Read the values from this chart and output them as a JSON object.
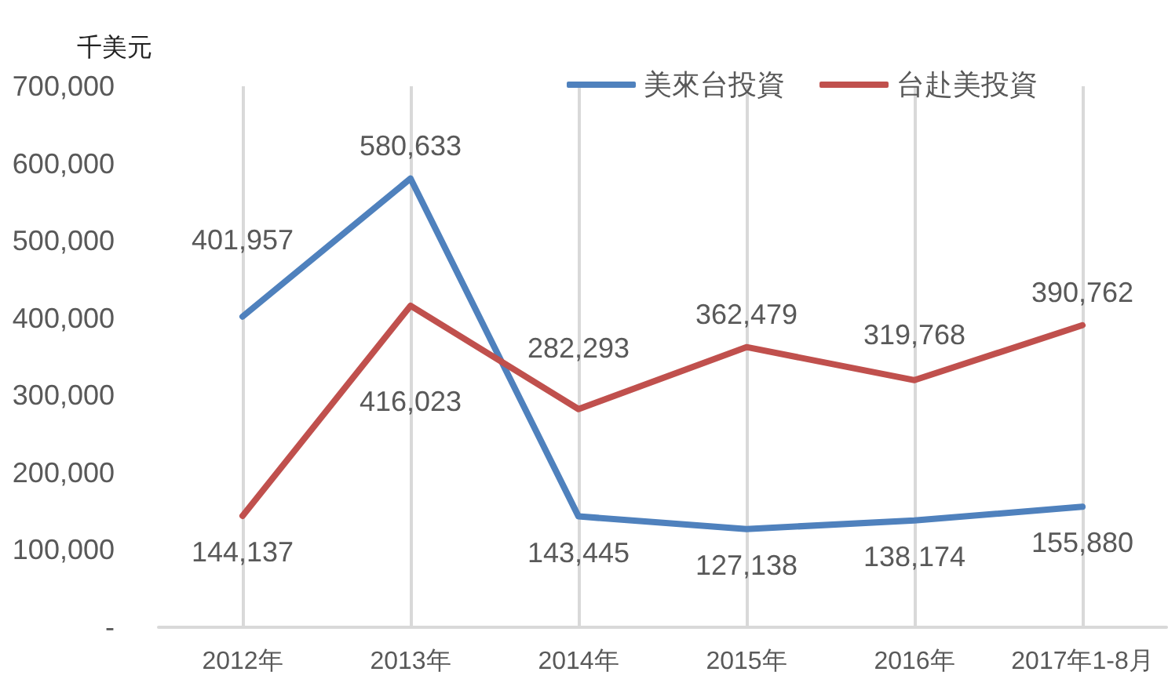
{
  "chart_data": {
    "type": "line",
    "ylabel": "千美元",
    "categories": [
      "2012年",
      "2013年",
      "2014年",
      "2015年",
      "2016年",
      "2017年1-8月"
    ],
    "series": [
      {
        "name": "美來台投資",
        "color": "#4f81bd",
        "values": [
          401957,
          580633,
          143445,
          127138,
          138174,
          155880
        ],
        "value_labels": [
          "401,957",
          "580,633",
          "143,445",
          "127,138",
          "138,174",
          "155,880"
        ]
      },
      {
        "name": "台赴美投資",
        "color": "#c0504d",
        "values": [
          144137,
          416023,
          282293,
          362479,
          319768,
          390762
        ],
        "value_labels": [
          "144,137",
          "416,023",
          "282,293",
          "362,479",
          "319,768",
          "390,762"
        ]
      }
    ],
    "ylim": [
      0,
      700000
    ],
    "yticks": [
      {
        "value": 0,
        "label": "-"
      },
      {
        "value": 100000,
        "label": "100,000"
      },
      {
        "value": 200000,
        "label": "200,000"
      },
      {
        "value": 300000,
        "label": "300,000"
      },
      {
        "value": 400000,
        "label": "400,000"
      },
      {
        "value": 500000,
        "label": "500,000"
      },
      {
        "value": 600000,
        "label": "600,000"
      },
      {
        "value": 700000,
        "label": "700,000"
      }
    ],
    "grid": "x",
    "legend": "top right"
  }
}
